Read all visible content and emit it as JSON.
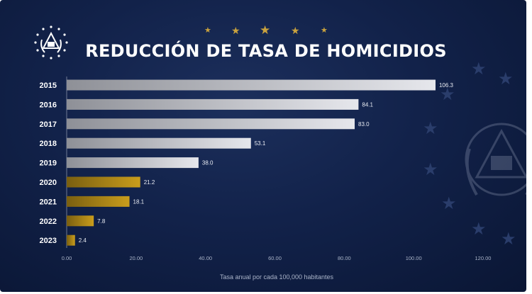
{
  "chart_data": {
    "type": "bar",
    "orientation": "horizontal",
    "title": "REDUCCIÓN DE TASA DE HOMICIDIOS",
    "xlabel": "Tasa anual por cada 100,000 habitantes",
    "ylabel": "",
    "categories": [
      "2015",
      "2016",
      "2017",
      "2018",
      "2019",
      "2020",
      "2021",
      "2022",
      "2023"
    ],
    "values": [
      106.3,
      84.1,
      83.0,
      53.1,
      38.0,
      21.2,
      18.1,
      7.8,
      2.4
    ],
    "value_labels": [
      "106.3",
      "84.1",
      "83.0",
      "53.1",
      "38.0",
      "21.2",
      "18.1",
      "7.8",
      "2.4"
    ],
    "xlim": [
      0,
      120
    ],
    "x_ticks": [
      0,
      20,
      40,
      60,
      80,
      100,
      120
    ],
    "x_tick_labels": [
      "0.00",
      "20.00",
      "40.00",
      "60.00",
      "80.00",
      "100.00",
      "120.00"
    ],
    "grid": false,
    "legend": "none",
    "colors": {
      "silver_bar": [
        "#8e9097",
        "#e6e7ec"
      ],
      "gold_bar": [
        "#7a5f10",
        "#c99d1c"
      ],
      "gold_from_index": 5,
      "background": "#12224a",
      "star": "#c9a23e"
    }
  }
}
